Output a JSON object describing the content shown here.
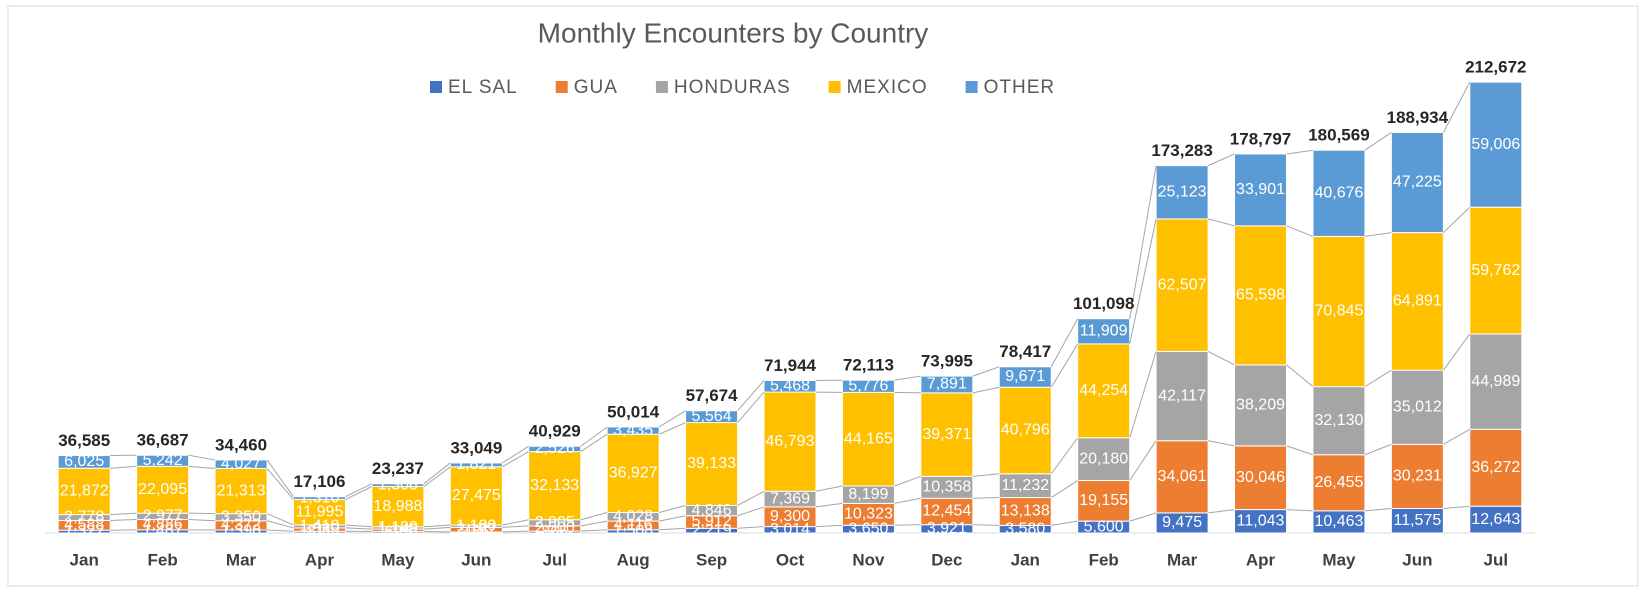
{
  "chart_data": {
    "type": "stacked_bar",
    "title": "Monthly Encounters by Country",
    "categories": [
      "Jan",
      "Feb",
      "Mar",
      "Apr",
      "May",
      "Jun",
      "Jul",
      "Aug",
      "Sep",
      "Oct",
      "Nov",
      "Dec",
      "Jan",
      "Feb",
      "Mar",
      "Apr",
      "May",
      "Jun",
      "Jul"
    ],
    "series": [
      {
        "name": "EL SAL",
        "color": "#4472c4",
        "values": [
          1322,
          1487,
          1398,
          811,
          695,
          486,
          865,
          1508,
          2219,
          3014,
          3650,
          3921,
          3580,
          5600,
          9475,
          11043,
          10463,
          11575,
          12643
        ],
        "value_labels": [
          "1,322",
          "1,487",
          "1,398",
          "811",
          "695",
          "486",
          "865",
          "1,508",
          "2,219",
          "3,014",
          "3,650",
          "3,921",
          "3,580",
          "5,600",
          "9,475",
          "11,043",
          "10,463",
          "11,575",
          "12,643"
        ]
      },
      {
        "name": "GUA",
        "color": "#ed7d31",
        "values": [
          4588,
          4886,
          4372,
          1580,
          1146,
          2167,
          2500,
          4116,
          5912,
          9300,
          10323,
          12454,
          13138,
          19155,
          34061,
          30046,
          26455,
          30231,
          36272
        ],
        "value_labels": [
          "4,588",
          "4,886",
          "4,372",
          "1,580",
          "1,146",
          "2,167",
          "2,500",
          "4,116",
          "5,912",
          "9,300",
          "10,323",
          "12,454",
          "13,138",
          "19,155",
          "34,061",
          "30,046",
          "26,455",
          "30,231",
          "36,272"
        ]
      },
      {
        "name": "HONDURAS",
        "color": "#a5a5a5",
        "values": [
          2778,
          2977,
          3350,
          1410,
          1100,
          1100,
          2905,
          4028,
          4846,
          7369,
          8199,
          10358,
          11232,
          20180,
          42117,
          38209,
          32130,
          35012,
          44989
        ],
        "value_labels": [
          "2,778",
          "2,977",
          "3,350",
          "1,410",
          "1,100",
          "1,100",
          "2,905",
          "4,028",
          "4,846",
          "7,369",
          "8,199",
          "10,358",
          "11,232",
          "20,180",
          "42,117",
          "38,209",
          "32,130",
          "35,012",
          "44,989"
        ]
      },
      {
        "name": "MEXICO",
        "color": "#ffc000",
        "values": [
          21872,
          22095,
          21313,
          11995,
          18988,
          27475,
          32133,
          36927,
          39133,
          46793,
          44165,
          39371,
          40796,
          44254,
          62507,
          65598,
          70845,
          64891,
          59762
        ],
        "value_labels": [
          "21,872",
          "22,095",
          "21,313",
          "11,995",
          "18,988",
          "27,475",
          "32,133",
          "36,927",
          "39,133",
          "46,793",
          "44,165",
          "39,371",
          "40,796",
          "44,254",
          "62,507",
          "65,598",
          "70,845",
          "64,891",
          "59,762"
        ]
      },
      {
        "name": "OTHER",
        "color": "#5b9bd5",
        "values": [
          6025,
          5242,
          4027,
          1310,
          1308,
          1821,
          2526,
          3435,
          5564,
          5468,
          5776,
          7891,
          9671,
          11909,
          25123,
          33901,
          40676,
          47225,
          59006
        ],
        "value_labels": [
          "6,025",
          "5,242",
          "4,027",
          "1,310",
          "1,308",
          "1,821",
          "2,526",
          "3,435",
          "5,564",
          "5,468",
          "5,776",
          "7,891",
          "9,671",
          "11,909",
          "25,123",
          "33,901",
          "40,676",
          "47,225",
          "59,006"
        ]
      }
    ],
    "totals": [
      36585,
      36687,
      34460,
      17106,
      23237,
      33049,
      40929,
      50014,
      57674,
      71944,
      72113,
      73995,
      78417,
      101098,
      173283,
      178797,
      180569,
      188934,
      212672
    ],
    "total_labels": [
      "36,585",
      "36,687",
      "34,460",
      "17,106",
      "23,237",
      "33,049",
      "40,929",
      "50,014",
      "57,674",
      "71,944",
      "72,113",
      "73,995",
      "78,417",
      "101,098",
      "173,283",
      "178,797",
      "180,569",
      "188,934",
      "212,672"
    ],
    "ylim": [
      0,
      225000
    ],
    "series_lines": true
  }
}
